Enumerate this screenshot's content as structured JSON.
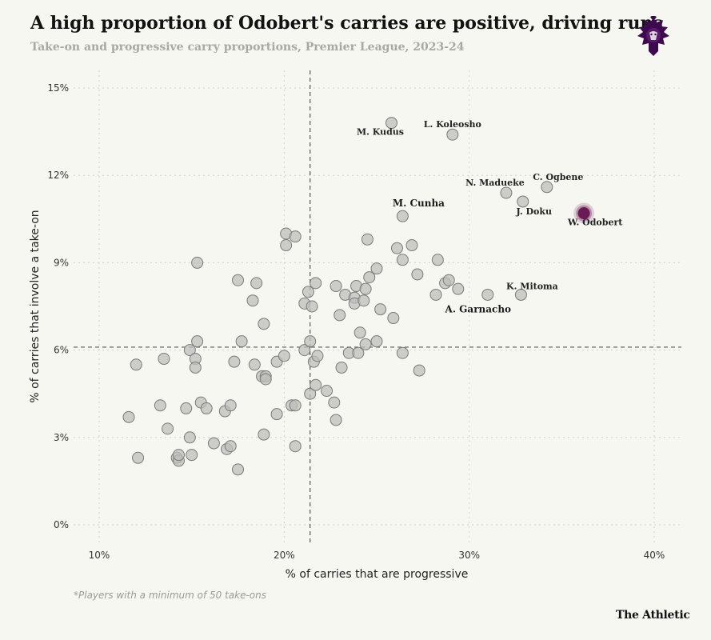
{
  "header": {
    "title": "A high proportion of Odobert's carries are positive, driving runs",
    "subtitle": "Take-on and progressive carry proportions, Premier League, 2023-24"
  },
  "footer": {
    "footnote": "*Players with a minimum of 50 take-ons",
    "brand": "The Athletic"
  },
  "logo": {
    "icon": "premier-league-lion-icon"
  },
  "colors": {
    "background": "#f7f7f2",
    "point_fill": "#bdbdbb",
    "point_stroke": "#7a7a78",
    "highlight": "#6a1a55",
    "grid": "#cfcfcb",
    "reference_line": "#555555"
  },
  "chart_data": {
    "type": "scatter",
    "title": "A high proportion of Odobert's carries are positive, driving runs",
    "xlabel": "% of carries that are progressive",
    "ylabel": "% of carries that involve a take-on",
    "xlim": [
      8.5,
      41
    ],
    "ylim": [
      -1,
      16
    ],
    "xticks": [
      10,
      20,
      30,
      40
    ],
    "xtick_labels": [
      "10%",
      "20%",
      "30%",
      "40%"
    ],
    "yticks": [
      0,
      3,
      6,
      9,
      12,
      15
    ],
    "ytick_labels": [
      "0%",
      "3%",
      "6%",
      "9%",
      "12%",
      "15%"
    ],
    "grid": true,
    "reference_lines": {
      "x_mean": 21.4,
      "y_mean": 6.1
    },
    "labeled_points": [
      {
        "name": "M. Kudus",
        "x": 25.8,
        "y": 13.8
      },
      {
        "name": "L. Koleosho",
        "x": 29.1,
        "y": 13.4
      },
      {
        "name": "C. Ogbene",
        "x": 34.2,
        "y": 11.6
      },
      {
        "name": "N. Madueke",
        "x": 32.0,
        "y": 11.4
      },
      {
        "name": "J. Doku",
        "x": 32.9,
        "y": 11.1
      },
      {
        "name": "M. Cunha",
        "x": 26.4,
        "y": 10.6
      },
      {
        "name": "W. Odobert",
        "x": 36.2,
        "y": 10.7,
        "highlight": true
      },
      {
        "name": "K. Mitoma",
        "x": 32.8,
        "y": 7.9
      },
      {
        "name": "A. Garnacho",
        "x": 31.0,
        "y": 7.9
      }
    ],
    "points": [
      [
        11.6,
        3.7
      ],
      [
        12.0,
        5.5
      ],
      [
        12.1,
        2.3
      ],
      [
        13.3,
        4.1
      ],
      [
        13.5,
        5.7
      ],
      [
        13.7,
        3.3
      ],
      [
        14.2,
        2.3
      ],
      [
        14.3,
        2.2
      ],
      [
        14.3,
        2.4
      ],
      [
        14.7,
        4.0
      ],
      [
        14.9,
        6.0
      ],
      [
        14.9,
        3.0
      ],
      [
        15.0,
        2.4
      ],
      [
        15.2,
        5.7
      ],
      [
        15.2,
        5.4
      ],
      [
        15.3,
        6.3
      ],
      [
        15.3,
        9.0
      ],
      [
        15.5,
        4.2
      ],
      [
        15.8,
        4.0
      ],
      [
        16.2,
        2.8
      ],
      [
        16.8,
        3.9
      ],
      [
        16.9,
        2.6
      ],
      [
        17.1,
        4.1
      ],
      [
        17.1,
        2.7
      ],
      [
        17.3,
        5.6
      ],
      [
        17.5,
        8.4
      ],
      [
        17.5,
        1.9
      ],
      [
        17.7,
        6.3
      ],
      [
        18.3,
        7.7
      ],
      [
        18.4,
        5.5
      ],
      [
        18.5,
        8.3
      ],
      [
        18.8,
        5.1
      ],
      [
        18.9,
        6.9
      ],
      [
        18.9,
        3.1
      ],
      [
        19.0,
        5.1
      ],
      [
        19.0,
        5.0
      ],
      [
        19.6,
        3.8
      ],
      [
        19.6,
        5.6
      ],
      [
        20.0,
        5.8
      ],
      [
        20.1,
        9.6
      ],
      [
        20.1,
        10.0
      ],
      [
        20.4,
        4.1
      ],
      [
        20.6,
        9.9
      ],
      [
        20.6,
        4.1
      ],
      [
        20.6,
        2.7
      ],
      [
        21.1,
        6.0
      ],
      [
        21.1,
        7.6
      ],
      [
        21.3,
        8.0
      ],
      [
        21.4,
        6.3
      ],
      [
        21.4,
        4.5
      ],
      [
        21.5,
        7.5
      ],
      [
        21.6,
        5.6
      ],
      [
        21.7,
        8.3
      ],
      [
        21.7,
        4.8
      ],
      [
        21.8,
        5.8
      ],
      [
        22.3,
        4.6
      ],
      [
        22.7,
        4.2
      ],
      [
        22.8,
        8.2
      ],
      [
        22.8,
        3.6
      ],
      [
        23.0,
        7.2
      ],
      [
        23.1,
        5.4
      ],
      [
        23.3,
        7.9
      ],
      [
        23.5,
        5.9
      ],
      [
        23.8,
        7.8
      ],
      [
        23.8,
        7.6
      ],
      [
        23.9,
        8.2
      ],
      [
        24.0,
        5.9
      ],
      [
        24.1,
        6.6
      ],
      [
        24.3,
        7.7
      ],
      [
        24.4,
        8.1
      ],
      [
        24.4,
        6.2
      ],
      [
        24.5,
        9.8
      ],
      [
        24.6,
        8.5
      ],
      [
        25.0,
        8.8
      ],
      [
        25.0,
        6.3
      ],
      [
        25.2,
        7.4
      ],
      [
        25.9,
        7.1
      ],
      [
        26.1,
        9.5
      ],
      [
        26.4,
        9.1
      ],
      [
        26.4,
        5.9
      ],
      [
        26.9,
        9.6
      ],
      [
        27.2,
        8.6
      ],
      [
        27.3,
        5.3
      ],
      [
        28.2,
        7.9
      ],
      [
        28.3,
        9.1
      ],
      [
        28.7,
        8.3
      ],
      [
        28.9,
        8.4
      ],
      [
        29.4,
        8.1
      ]
    ]
  }
}
